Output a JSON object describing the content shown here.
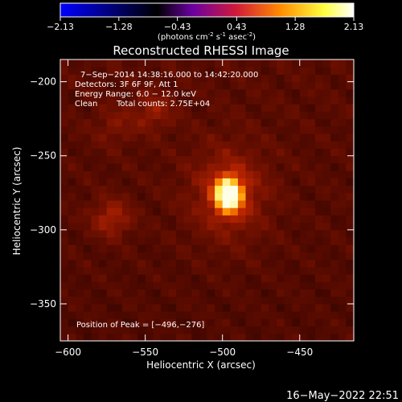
{
  "colorbar": {
    "ticks": [
      "-2.13",
      "-1.28",
      "-0.43",
      "0.43",
      "1.28",
      "2.13"
    ],
    "tick_values": [
      -2.13,
      -1.28,
      -0.43,
      0.43,
      1.28,
      2.13
    ],
    "units_label": "(photons cm",
    "units_sup1": "-2",
    "units_mid": " s",
    "units_sup2": "-1",
    "units_mid2": " asec",
    "units_sup3": "-2",
    "units_end": ")",
    "colormap": [
      "#0000ff",
      "#000000",
      "#6a00a0",
      "#d01a3a",
      "#ff8c00",
      "#ffff40",
      "#ffffff"
    ]
  },
  "chart_data": {
    "type": "heatmap",
    "title": "Reconstructed RHESSI Image",
    "xlabel": "Heliocentric X (arcsec)",
    "ylabel": "Heliocentric Y (arcsec)",
    "xlim": [
      -605,
      -415
    ],
    "ylim": [
      -375,
      -185
    ],
    "x_ticks": [
      -600,
      -550,
      -500,
      -450
    ],
    "x_tick_labels": [
      "−600",
      "−550",
      "−500",
      "−450"
    ],
    "y_ticks": [
      -200,
      -250,
      -300,
      -350
    ],
    "y_tick_labels": [
      "−200",
      "−250",
      "−300",
      "−350"
    ],
    "peak_position": [
      -496,
      -276
    ],
    "secondary_sources": [
      {
        "x": -572,
        "y": -292,
        "intensity": 0.25
      },
      {
        "x": -545,
        "y": -220,
        "intensity": 0.18
      },
      {
        "x": -570,
        "y": -230,
        "intensity": 0.12
      }
    ],
    "annotations": {
      "time_range": "7−Sep−2014 14:38:16.000 to 14:42:20.000",
      "detectors": "Detectors: 3F 6F 9F, Att 1",
      "energy_range": "Energy Range: 6.0 − 12.0 keV",
      "clean_label": "Clean",
      "total_counts": "Total counts: 2.75E+04",
      "peak_label": "Position of Peak = [−496,−276]"
    }
  },
  "footer": {
    "timestamp": "16−May−2022 22:51"
  }
}
